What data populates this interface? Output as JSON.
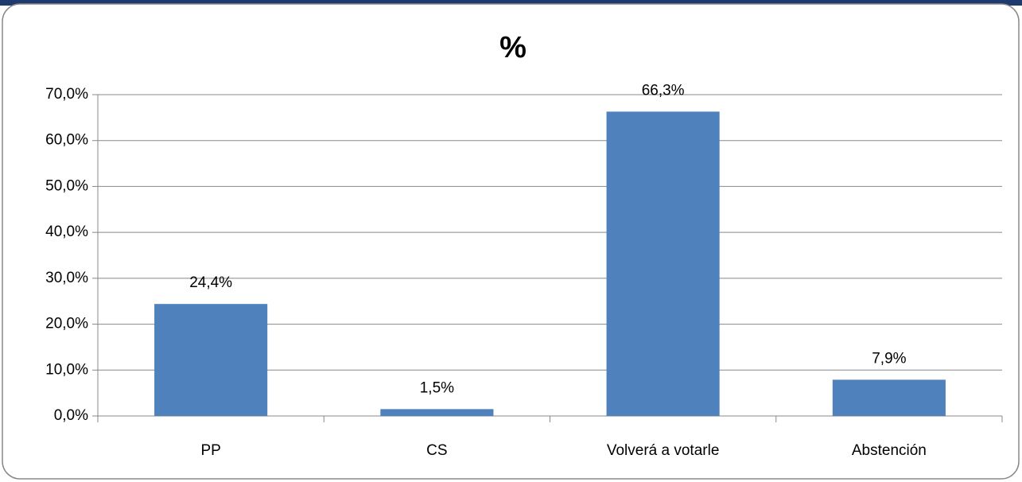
{
  "chart_data": {
    "type": "bar",
    "title": "%",
    "categories": [
      "PP",
      "CS",
      "Volverá a votarle",
      "Abstención"
    ],
    "values": [
      24.4,
      1.5,
      66.3,
      7.9
    ],
    "value_labels": [
      "24,4%",
      "1,5%",
      "66,3%",
      "7,9%"
    ],
    "color": "#4f81bd",
    "ylim": [
      0,
      70
    ],
    "yticks": [
      {
        "value": 0,
        "label": "0,0%"
      },
      {
        "value": 10,
        "label": "10,0%"
      },
      {
        "value": 20,
        "label": "20,0%"
      },
      {
        "value": 30,
        "label": "30,0%"
      },
      {
        "value": 40,
        "label": "40,0%"
      },
      {
        "value": 50,
        "label": "50,0%"
      },
      {
        "value": 60,
        "label": "60,0%"
      },
      {
        "value": 70,
        "label": "70,0%"
      }
    ],
    "grid": true
  }
}
